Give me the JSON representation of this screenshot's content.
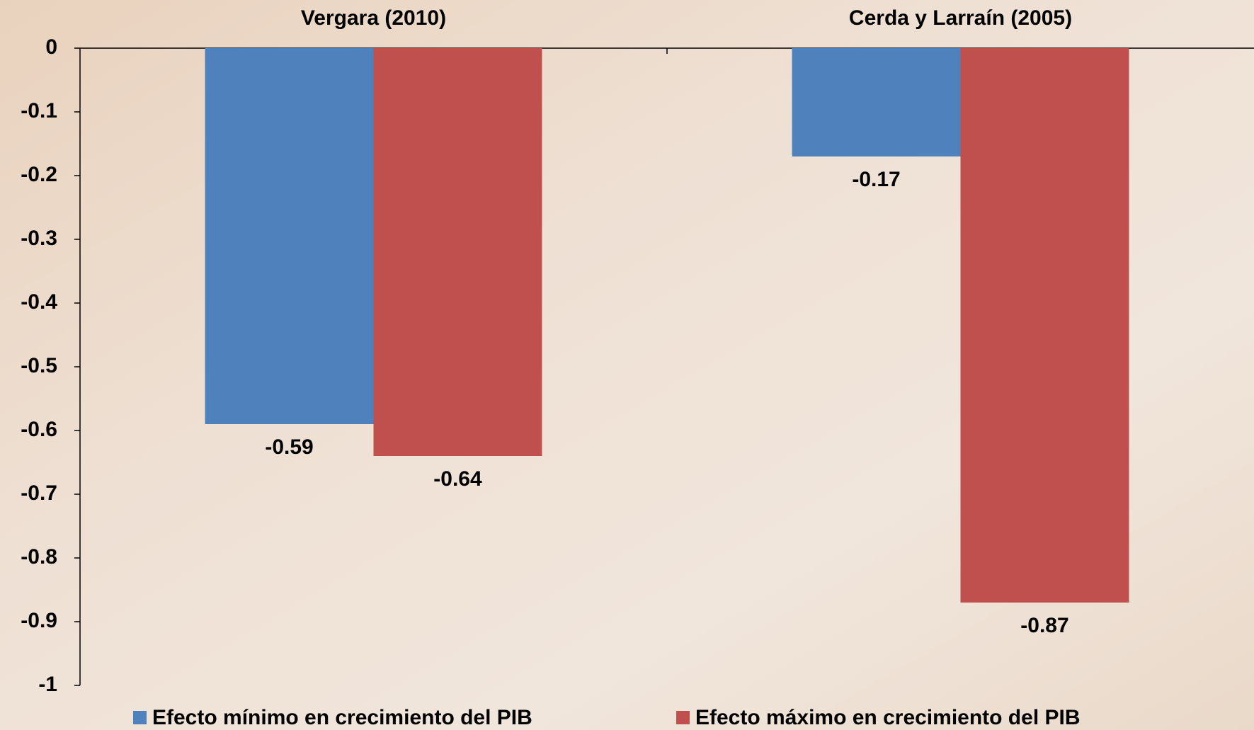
{
  "chart_data": {
    "type": "bar",
    "categories": [
      "Vergara (2010)",
      "Cerda y Larraín (2005)"
    ],
    "series": [
      {
        "name": "Efecto mínimo en crecimiento del PIB",
        "color": "#4f81bd",
        "values": [
          -0.59,
          -0.17
        ]
      },
      {
        "name": "Efecto máximo en crecimiento del PIB",
        "color": "#c0504d",
        "values": [
          -0.64,
          -0.87
        ]
      }
    ],
    "ylim": [
      -1,
      0
    ],
    "yticks": [
      0,
      -0.1,
      -0.2,
      -0.3,
      -0.4,
      -0.5,
      -0.6,
      -0.7,
      -0.8,
      -0.9,
      -1
    ],
    "legend": "bottom"
  }
}
